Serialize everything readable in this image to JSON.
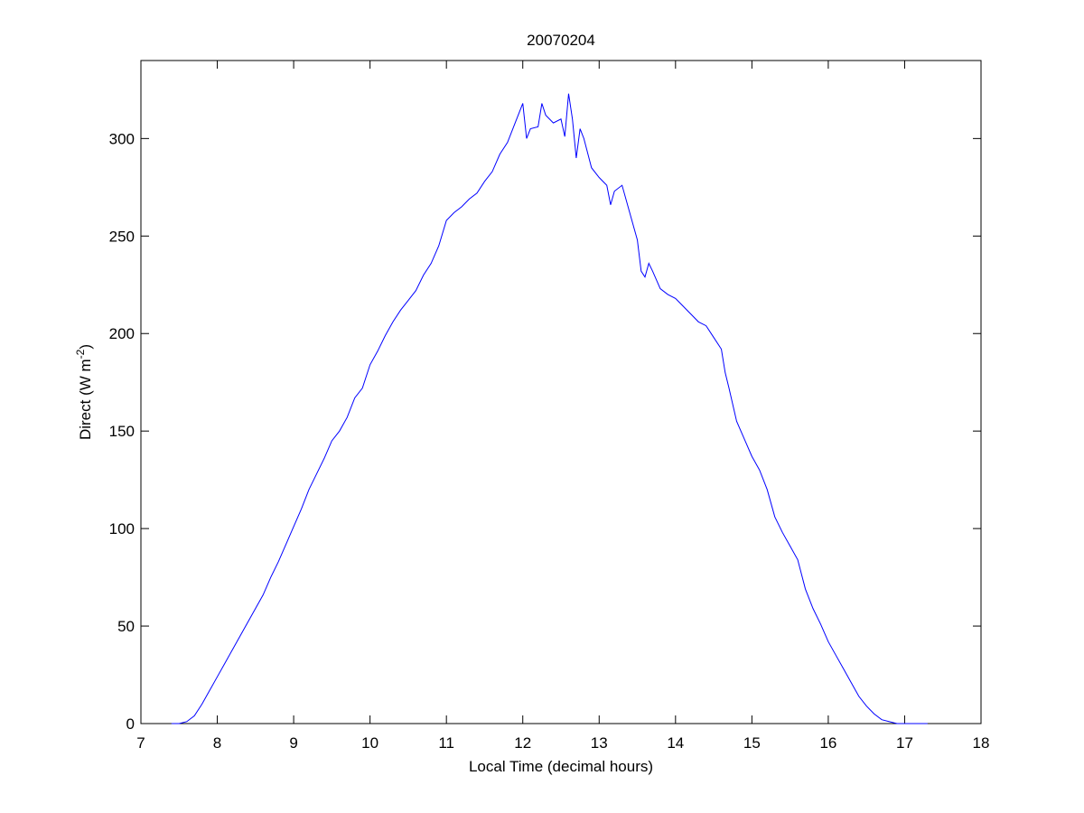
{
  "chart_data": {
    "type": "line",
    "title": "20070204",
    "xlabel": "Local Time (decimal hours)",
    "ylabel": "Direct (W m",
    "ylabel_superscript": "-2",
    "ylabel_end": ")",
    "x": [
      7.4,
      7.5,
      7.6,
      7.7,
      7.8,
      7.9,
      8.0,
      8.1,
      8.2,
      8.3,
      8.4,
      8.5,
      8.6,
      8.7,
      8.8,
      8.9,
      9.0,
      9.1,
      9.2,
      9.3,
      9.4,
      9.5,
      9.6,
      9.7,
      9.8,
      9.9,
      10.0,
      10.1,
      10.2,
      10.3,
      10.4,
      10.5,
      10.6,
      10.7,
      10.8,
      10.9,
      11.0,
      11.1,
      11.2,
      11.3,
      11.4,
      11.5,
      11.6,
      11.7,
      11.8,
      11.9,
      12.0,
      12.05,
      12.1,
      12.2,
      12.25,
      12.3,
      12.4,
      12.5,
      12.55,
      12.6,
      12.65,
      12.7,
      12.75,
      12.8,
      12.9,
      13.0,
      13.1,
      13.15,
      13.2,
      13.3,
      13.4,
      13.5,
      13.55,
      13.6,
      13.65,
      13.7,
      13.8,
      13.9,
      14.0,
      14.1,
      14.2,
      14.3,
      14.4,
      14.5,
      14.6,
      14.65,
      14.7,
      14.8,
      14.9,
      15.0,
      15.1,
      15.2,
      15.3,
      15.4,
      15.5,
      15.6,
      15.7,
      15.8,
      15.9,
      16.0,
      16.1,
      16.2,
      16.3,
      16.4,
      16.5,
      16.6,
      16.7,
      16.8,
      16.9,
      17.0,
      17.1,
      17.3
    ],
    "values": [
      0,
      0,
      1,
      4,
      10,
      17,
      24,
      31,
      38,
      45,
      52,
      59,
      66,
      75,
      83,
      92,
      101,
      110,
      120,
      128,
      136,
      145,
      150,
      157,
      167,
      172,
      184,
      191,
      199,
      206,
      212,
      217,
      222,
      230,
      236,
      245,
      258,
      262,
      265,
      269,
      272,
      278,
      283,
      292,
      298,
      308,
      318,
      300,
      305,
      306,
      318,
      312,
      308,
      310,
      301,
      323,
      310,
      290,
      305,
      300,
      285,
      280,
      276,
      266,
      273,
      276,
      262,
      248,
      232,
      229,
      236,
      232,
      223,
      220,
      218,
      214,
      210,
      206,
      204,
      198,
      192,
      180,
      172,
      155,
      146,
      137,
      130,
      120,
      106,
      98,
      91,
      84,
      69,
      59,
      51,
      42,
      35,
      28,
      21,
      14,
      9,
      5,
      2,
      1,
      0,
      0,
      0,
      0
    ],
    "color": "#0000ff",
    "xlim": [
      7,
      18
    ],
    "xticks": [
      7,
      8,
      9,
      10,
      11,
      12,
      13,
      14,
      15,
      16,
      17,
      18
    ],
    "ylim": [
      0,
      340
    ],
    "yticks": [
      0,
      50,
      100,
      150,
      200,
      250,
      300
    ],
    "grid": false
  }
}
